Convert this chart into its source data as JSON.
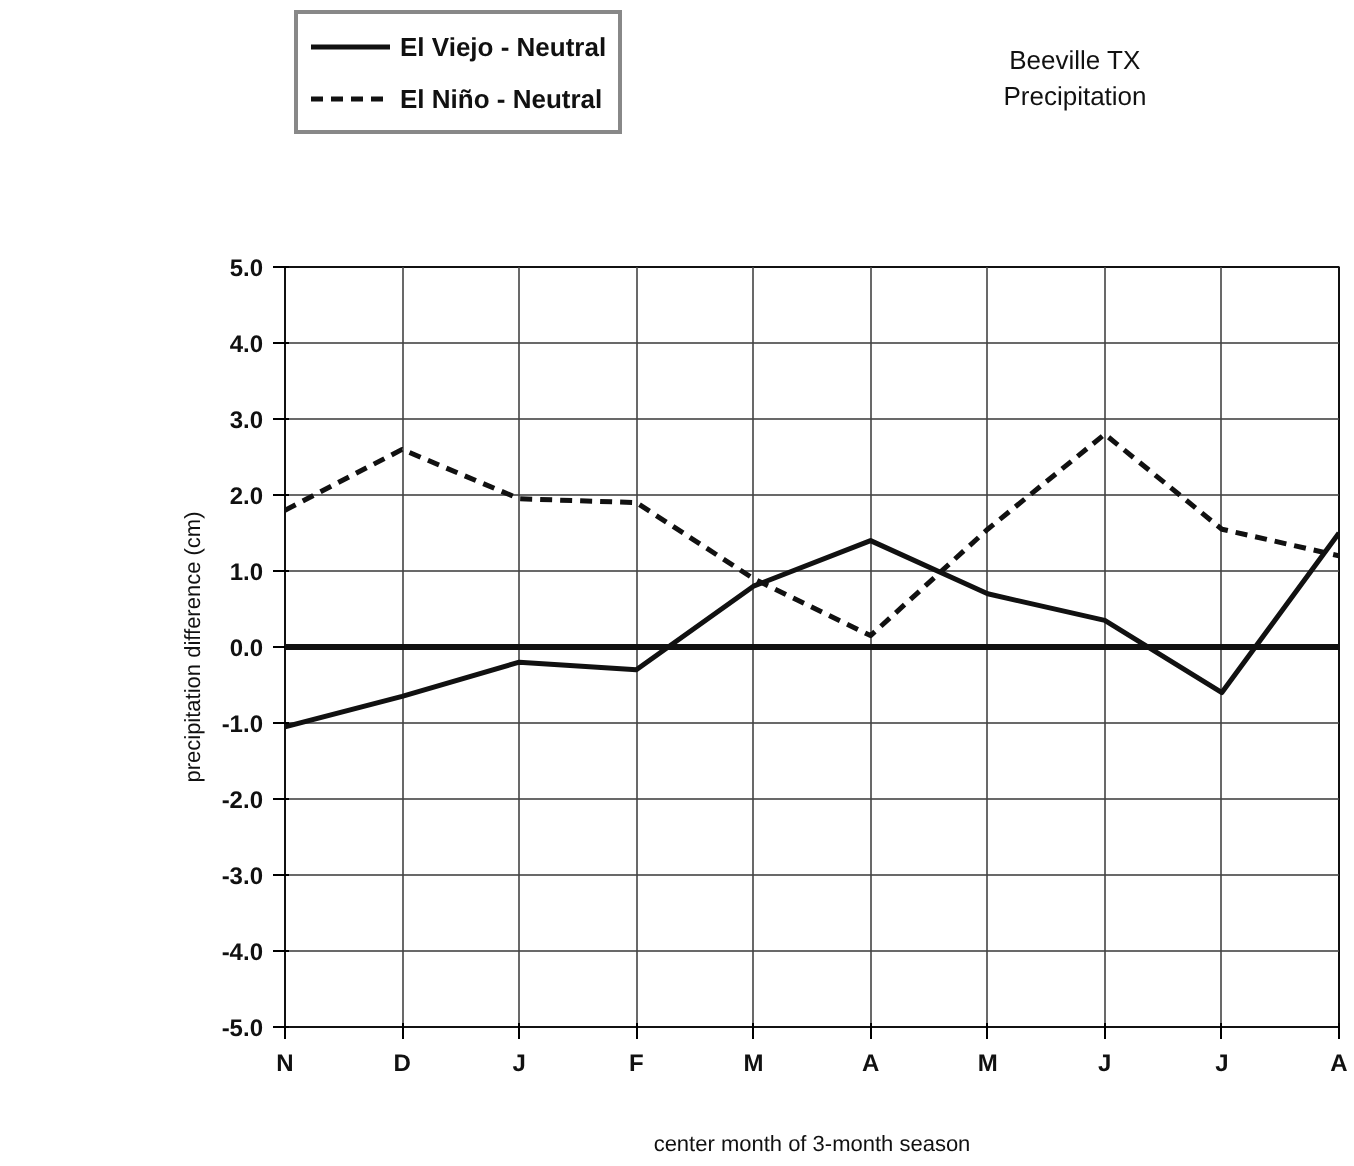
{
  "chart_data": {
    "type": "line",
    "title": "Beeville TX\nPrecipitation",
    "xlabel": "center month of 3-month season",
    "ylabel": "precipitation difference (cm)",
    "categories": [
      "N",
      "D",
      "J",
      "F",
      "M",
      "A",
      "M",
      "J",
      "J",
      "A"
    ],
    "series": [
      {
        "name": "El Viejo - Neutral",
        "color": "#111111",
        "line_style": "solid",
        "values": [
          -1.05,
          -0.65,
          -0.2,
          -0.3,
          0.8,
          1.4,
          0.7,
          0.35,
          -0.6,
          1.5
        ]
      },
      {
        "name": "El Niño - Neutral",
        "color": "#111111",
        "line_style": "dashed",
        "values": [
          1.8,
          2.6,
          1.95,
          1.9,
          0.9,
          0.15,
          1.55,
          2.8,
          1.55,
          1.2
        ]
      }
    ],
    "ylim": [
      -5,
      5
    ],
    "yticks": [
      {
        "value": -5,
        "label": "-5.0"
      },
      {
        "value": -4,
        "label": "-4.0"
      },
      {
        "value": -3,
        "label": "-3.0"
      },
      {
        "value": -2,
        "label": "-2.0"
      },
      {
        "value": -1,
        "label": "-1.0"
      },
      {
        "value": 0,
        "label": "0.0"
      },
      {
        "value": 1,
        "label": "1.0"
      },
      {
        "value": 2,
        "label": "2.0"
      },
      {
        "value": 3,
        "label": "3.0"
      },
      {
        "value": 4,
        "label": "4.0"
      },
      {
        "value": 5,
        "label": "5.0"
      }
    ],
    "ref_lines": [
      {
        "axis": "y",
        "value": 0,
        "color": "#111111"
      }
    ],
    "grid": true,
    "legend": "top left",
    "marker": "none"
  }
}
